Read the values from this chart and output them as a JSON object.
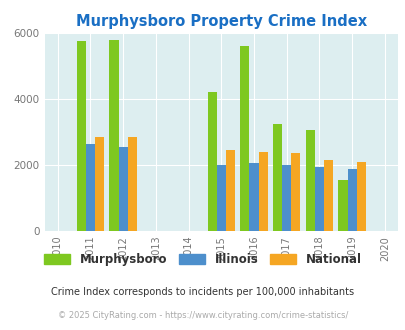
{
  "title": "Murphysboro Property Crime Index",
  "all_years": [
    2010,
    2011,
    2012,
    2013,
    2014,
    2015,
    2016,
    2017,
    2018,
    2019,
    2020
  ],
  "data_years": [
    2011,
    2012,
    2015,
    2016,
    2017,
    2018,
    2019
  ],
  "murphysboro": [
    5750,
    5800,
    4200,
    5600,
    3250,
    3050,
    1550
  ],
  "illinois": [
    2650,
    2550,
    2000,
    2050,
    2000,
    1950,
    1875
  ],
  "national": [
    2850,
    2850,
    2450,
    2400,
    2350,
    2150,
    2100
  ],
  "color_murphysboro": "#7ec820",
  "color_illinois": "#4d8fcc",
  "color_national": "#f5a623",
  "bg_color": "#ddeef0",
  "title_color": "#1a6fc4",
  "bar_width": 0.28,
  "ylim": [
    0,
    6000
  ],
  "yticks": [
    0,
    2000,
    4000,
    6000
  ],
  "footnote1": "Crime Index corresponds to incidents per 100,000 inhabitants",
  "footnote2": "© 2025 CityRating.com - https://www.cityrating.com/crime-statistics/",
  "legend_labels": [
    "Murphysboro",
    "Illinois",
    "National"
  ]
}
